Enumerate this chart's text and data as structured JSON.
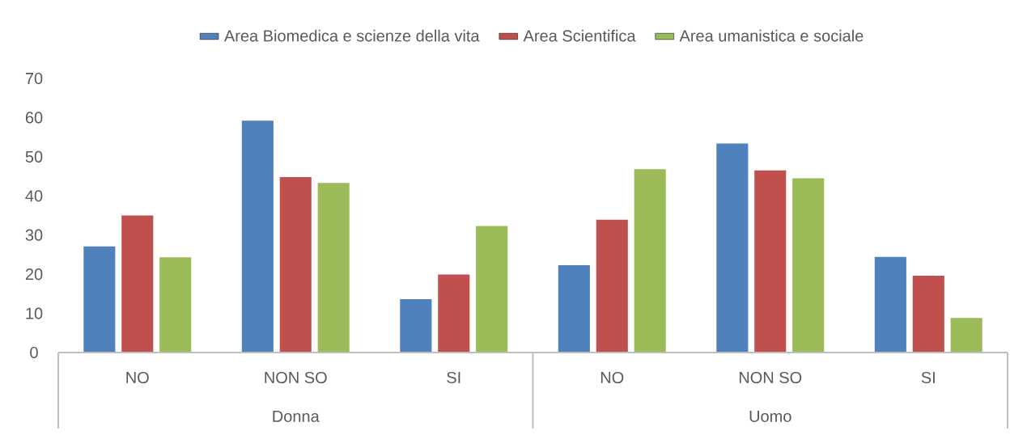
{
  "chart_data": {
    "type": "bar",
    "categories": [
      "NO",
      "NON SO",
      "SI",
      "NO",
      "NON SO",
      "SI"
    ],
    "annotations": [
      "Donna",
      "Uomo"
    ],
    "series": [
      {
        "name": "Area Biomedica e scienze della vita",
        "color": "#4f81bd",
        "values": [
          27.1,
          59.2,
          13.6,
          22.3,
          53.4,
          24.4
        ]
      },
      {
        "name": "Area Scientifica",
        "color": "#c0504d",
        "values": [
          35.0,
          44.8,
          19.9,
          33.9,
          46.5,
          19.6
        ]
      },
      {
        "name": "Area umanistica e sociale",
        "color": "#9bbb59",
        "values": [
          24.3,
          43.3,
          32.3,
          46.8,
          44.5,
          8.8
        ]
      }
    ],
    "ylim": [
      0,
      70
    ],
    "yticks": [
      0,
      10,
      20,
      30,
      40,
      50,
      60,
      70
    ],
    "grid": false,
    "legend": "top"
  }
}
